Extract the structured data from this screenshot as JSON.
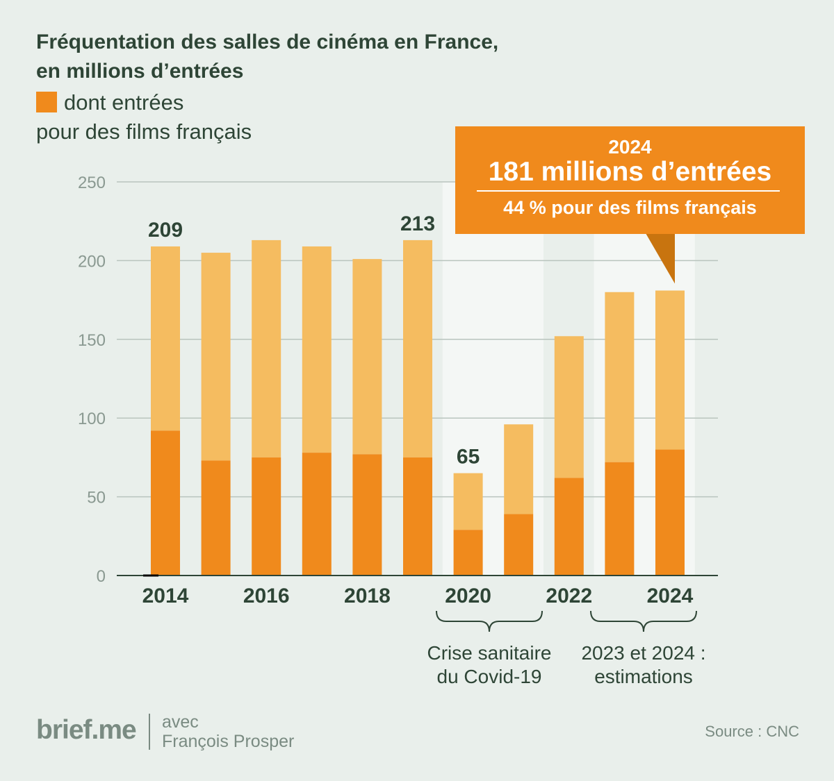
{
  "title_line1": "Fréquentation des salles de cinéma en France,",
  "title_line2": "en millions d’entrées",
  "legend_line1": "dont entrées",
  "legend_line2": "pour des films français",
  "callout": {
    "year": "2024",
    "main": "181 millions d’entrées",
    "share": "44 % pour des films français"
  },
  "brackets": {
    "covid_line1": "Crise sanitaire",
    "covid_line2": "du Covid-19",
    "estimates_line1": "2023 et 2024 :",
    "estimates_line2": "estimations"
  },
  "brand": "brief.me",
  "author_line1": "avec",
  "author_line2": "François Prosper",
  "source": "Source : CNC",
  "colors": {
    "total": "#f5bc60",
    "french": "#f08a1c",
    "text": "#2e4536",
    "grid": "#b9c4be"
  },
  "chart_data": {
    "type": "bar",
    "stacked": true,
    "categories": [
      "2014",
      "2015",
      "2016",
      "2017",
      "2018",
      "2019",
      "2020",
      "2021",
      "2022",
      "2023",
      "2024"
    ],
    "x_tick_labels": [
      "2014",
      "2016",
      "2018",
      "2020",
      "2022",
      "2024"
    ],
    "series": [
      {
        "name": "dont entrées pour des films français",
        "values": [
          92,
          73,
          75,
          78,
          77,
          75,
          29,
          39,
          62,
          72,
          80
        ]
      },
      {
        "values": [
          117,
          132,
          138,
          131,
          124,
          138,
          36,
          57,
          90,
          108,
          101
        ]
      }
    ],
    "totals": [
      209,
      205,
      213,
      209,
      201,
      213,
      65,
      96,
      152,
      180,
      181
    ],
    "data_labels": [
      {
        "category": "2014",
        "text": "209"
      },
      {
        "category": "2019",
        "text": "213"
      },
      {
        "category": "2020",
        "text": "65"
      }
    ],
    "y_ticks": [
      0,
      50,
      100,
      150,
      200,
      250
    ],
    "ylim": [
      0,
      250
    ],
    "grid": true,
    "highlighted_periods": [
      [
        "2020",
        "2021"
      ],
      [
        "2023",
        "2024"
      ]
    ]
  }
}
